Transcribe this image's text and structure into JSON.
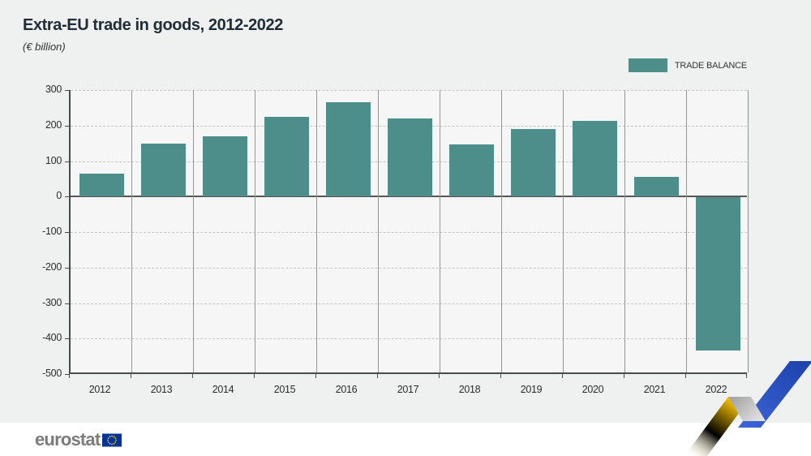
{
  "header": {
    "title": "Extra-EU trade in goods, 2012-2022",
    "subtitle": "(€ billion)"
  },
  "legend": {
    "label": "TRADE BALANCE",
    "swatch_color": "#4d8e8b",
    "position": "top-right"
  },
  "chart_data": {
    "type": "bar",
    "title": "Extra-EU trade in goods, 2012-2022",
    "unit_label": "(€ billion)",
    "categories": [
      "2012",
      "2013",
      "2014",
      "2015",
      "2016",
      "2017",
      "2018",
      "2019",
      "2020",
      "2021",
      "2022"
    ],
    "series": [
      {
        "name": "TRADE BALANCE",
        "color": "#4d8e8b",
        "values": [
          65,
          150,
          170,
          225,
          265,
          220,
          147,
          190,
          213,
          55,
          -432
        ]
      }
    ],
    "xlabel": "",
    "ylabel": "",
    "ylim": [
      -500,
      300
    ],
    "yticks": [
      300,
      200,
      100,
      0,
      -100,
      -200,
      -300,
      -400,
      -500
    ],
    "grid": "horizontal dashed gridlines, vertical solid column separators, solid zero line",
    "legend_position": "top-right"
  },
  "footer": {
    "brand": "eurostat",
    "flag_icon": "eu-flag-icon"
  },
  "decoration": {
    "name": "trend-zigzag",
    "colors": {
      "yellow": "#fcc600",
      "gray": "#b3b3b3",
      "blue": "#2a52c8"
    }
  }
}
